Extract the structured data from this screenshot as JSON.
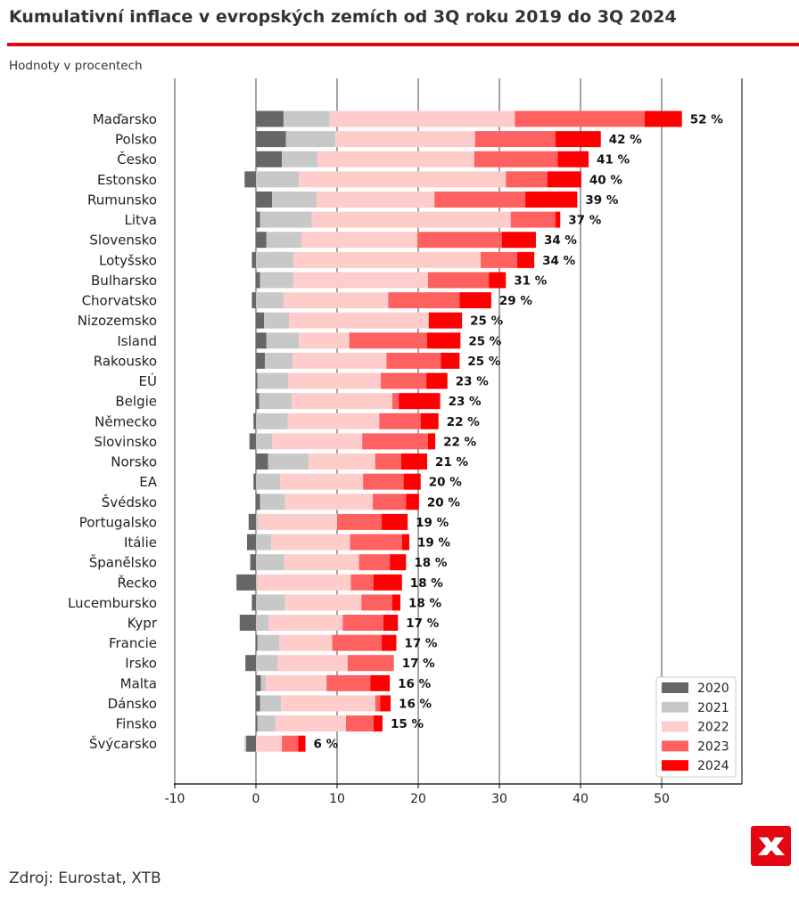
{
  "header": {
    "title": "Kumulativní inflace v evropských zemích od 3Q roku 2019 do 3Q 2024",
    "subtitle": "Hodnoty v procentech"
  },
  "footer": {
    "source": "Zdroj: Eurostat, XTB"
  },
  "colors": {
    "accent": "#e30613",
    "logo_bg": "#e30613"
  },
  "logo": {
    "icon": "xtb-x-logo"
  },
  "chart_data": {
    "type": "bar",
    "orientation": "horizontal",
    "stacked": true,
    "xlim": [
      -10,
      60
    ],
    "xticks": [
      -10,
      0,
      10,
      20,
      30,
      40,
      50
    ],
    "legend_position": "bottom-right",
    "grid": "vertical lines",
    "categories": [
      "Maďarsko",
      "Polsko",
      "Česko",
      "Estonsko",
      "Rumunsko",
      "Litva",
      "Slovensko",
      "Lotyšsko",
      "Bulharsko",
      "Chorvatsko",
      "Nizozemsko",
      "Island",
      "Rakousko",
      "EÚ",
      "Belgie",
      "Německo",
      "Slovinsko",
      "Norsko",
      "EA",
      "Švédsko",
      "Portugalsko",
      "Itálie",
      "Španělsko",
      "Řecko",
      "Lucembursko",
      "Kypr",
      "Francie",
      "Irsko",
      "Malta",
      "Dánsko",
      "Finsko",
      "Švýcarsko"
    ],
    "totals": [
      "52 %",
      "42 %",
      "41 %",
      "40 %",
      "39 %",
      "37 %",
      "34 %",
      "34 %",
      "31 %",
      "29 %",
      "25 %",
      "25 %",
      "25 %",
      "23 %",
      "23 %",
      "22 %",
      "22 %",
      "21 %",
      "20 %",
      "20 %",
      "19 %",
      "19 %",
      "18 %",
      "18 %",
      "18 %",
      "17 %",
      "17 %",
      "17 %",
      "16 %",
      "16 %",
      "15 %",
      "6 %"
    ],
    "series": [
      {
        "name": "2020",
        "color": "#666666",
        "values": [
          3.4,
          3.7,
          3.2,
          -1.4,
          2.0,
          0.5,
          1.3,
          -0.5,
          0.5,
          -0.5,
          1.0,
          1.3,
          1.1,
          0.2,
          0.4,
          -0.3,
          -0.8,
          1.5,
          -0.3,
          0.5,
          -0.9,
          -1.1,
          -0.7,
          -2.4,
          -0.5,
          -2.0,
          0.2,
          -1.3,
          0.6,
          0.5,
          0.2,
          -1.2
        ]
      },
      {
        "name": "2021",
        "color": "#c8c8c8",
        "values": [
          5.7,
          6.1,
          4.4,
          5.3,
          5.5,
          6.4,
          4.3,
          4.6,
          4.1,
          3.4,
          3.1,
          4.0,
          3.4,
          3.8,
          4.0,
          3.9,
          2.0,
          5.0,
          3.0,
          3.1,
          0.3,
          1.9,
          3.5,
          0.2,
          3.6,
          1.6,
          2.7,
          2.7,
          0.6,
          2.6,
          2.2,
          -0.2
        ]
      },
      {
        "name": "2022",
        "color": "#ffcccc",
        "values": [
          22.8,
          17.2,
          19.3,
          25.5,
          14.5,
          24.5,
          14.3,
          23.1,
          16.6,
          12.9,
          17.2,
          6.2,
          11.6,
          11.4,
          12.4,
          11.3,
          11.1,
          8.2,
          10.2,
          10.8,
          9.7,
          9.7,
          9.2,
          11.5,
          9.4,
          9.1,
          6.5,
          8.6,
          7.5,
          11.6,
          8.7,
          3.2
        ]
      },
      {
        "name": "2023",
        "color": "#ff6060",
        "values": [
          16.0,
          9.9,
          10.3,
          5.1,
          11.2,
          5.5,
          10.4,
          4.5,
          7.5,
          8.8,
          0.0,
          9.6,
          6.7,
          5.6,
          0.8,
          5.1,
          8.1,
          3.2,
          5.0,
          4.1,
          5.5,
          6.4,
          3.8,
          2.8,
          3.8,
          5.0,
          6.1,
          5.7,
          5.4,
          0.6,
          3.4,
          2.0
        ]
      },
      {
        "name": "2024",
        "color": "#ff0000",
        "values": [
          4.6,
          5.6,
          3.8,
          4.2,
          6.4,
          0.6,
          4.2,
          2.1,
          2.1,
          3.9,
          4.1,
          4.1,
          2.3,
          2.6,
          5.1,
          2.2,
          0.9,
          3.2,
          2.1,
          1.6,
          3.2,
          0.9,
          2.0,
          3.5,
          1.0,
          1.8,
          1.8,
          0.0,
          2.4,
          1.3,
          1.1,
          0.9
        ]
      }
    ]
  }
}
